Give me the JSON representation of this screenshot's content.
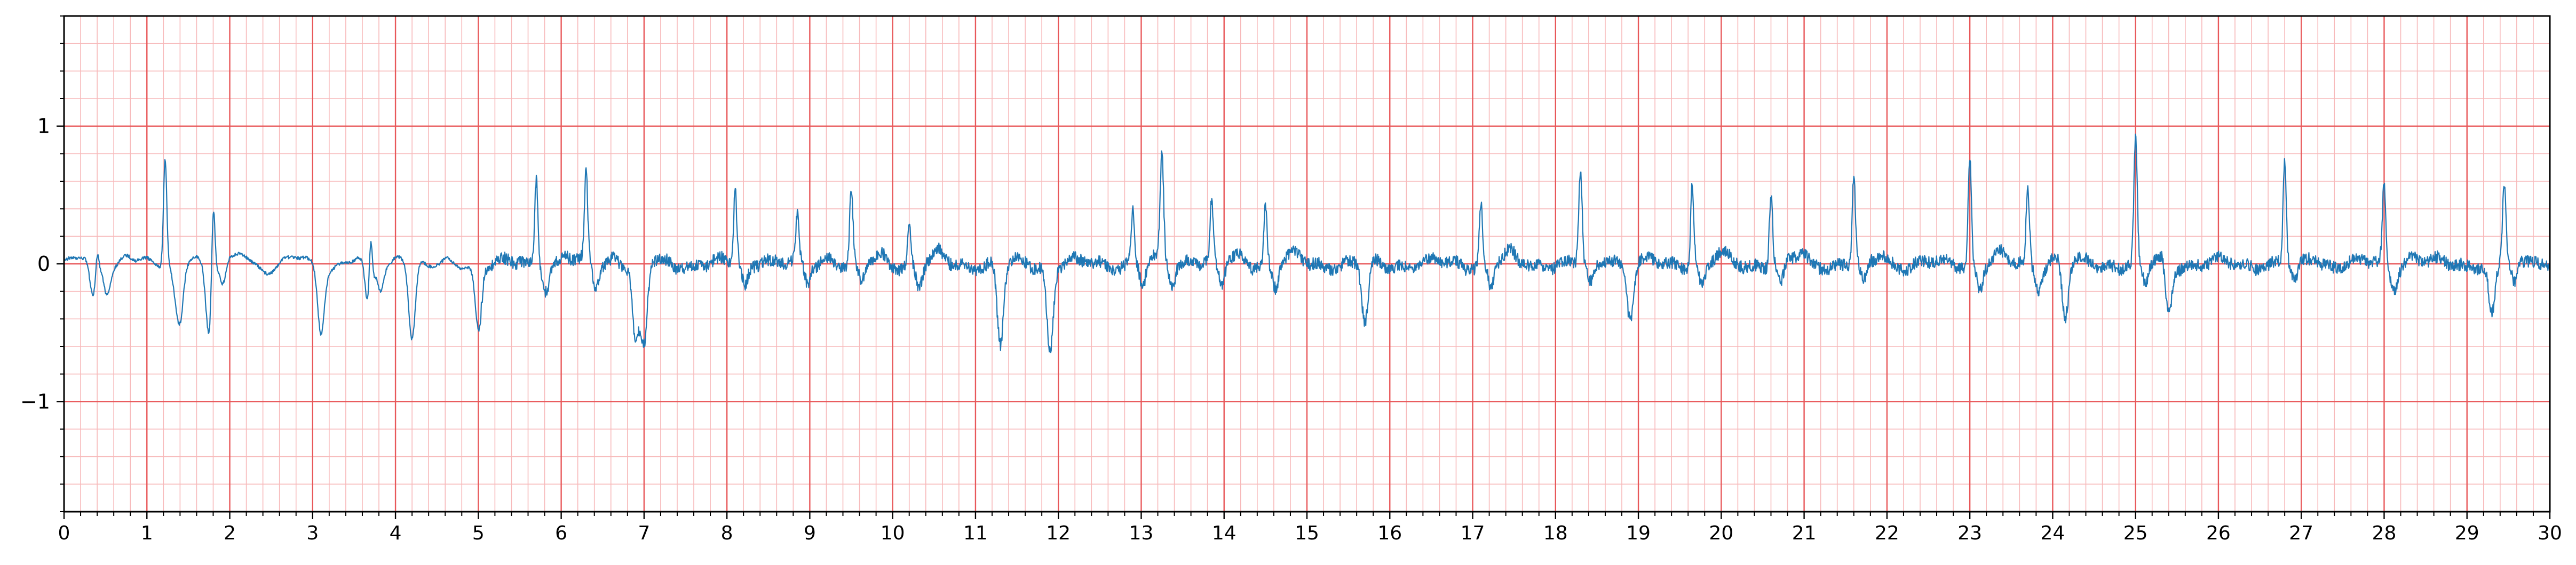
{
  "chart_data": {
    "type": "line",
    "title": "",
    "xlabel": "",
    "ylabel": "",
    "xlim": [
      0,
      30
    ],
    "ylim": [
      -1.8,
      1.8
    ],
    "x_ticks": [
      "0",
      "1",
      "2",
      "3",
      "4",
      "5",
      "6",
      "7",
      "8",
      "9",
      "10",
      "11",
      "12",
      "13",
      "14",
      "15",
      "16",
      "17",
      "18",
      "19",
      "20",
      "21",
      "22",
      "23",
      "24",
      "25",
      "26",
      "27",
      "28",
      "29",
      "30"
    ],
    "y_ticks": [
      {
        "value": 1,
        "label": "1"
      },
      {
        "value": 0,
        "label": "0"
      },
      {
        "value": -1,
        "label": "−1"
      }
    ],
    "grid": {
      "major": {
        "x_step": 1,
        "y_step": 1,
        "color": "#e8585a"
      },
      "minor": {
        "x_step": 0.2,
        "y_step": 0.2,
        "color": "#f7b9ba"
      }
    },
    "series": [
      {
        "color": "#1f77b4",
        "peaks": [
          {
            "x": 0.4,
            "y": 0.2
          },
          {
            "x": 1.22,
            "y": 0.8
          },
          {
            "x": 1.8,
            "y": 0.64
          },
          {
            "x": 3.7,
            "y": 0.52
          },
          {
            "x": 5.7,
            "y": 0.65
          },
          {
            "x": 6.3,
            "y": 0.65
          },
          {
            "x": 8.1,
            "y": 0.55
          },
          {
            "x": 8.85,
            "y": 0.35
          },
          {
            "x": 9.5,
            "y": 0.55
          },
          {
            "x": 10.2,
            "y": 0.3
          },
          {
            "x": 12.9,
            "y": 0.4
          },
          {
            "x": 13.25,
            "y": 0.73
          },
          {
            "x": 13.85,
            "y": 0.45
          },
          {
            "x": 14.5,
            "y": 0.45
          },
          {
            "x": 17.1,
            "y": 0.45
          },
          {
            "x": 18.3,
            "y": 0.7
          },
          {
            "x": 19.65,
            "y": 0.62
          },
          {
            "x": 20.6,
            "y": 0.55
          },
          {
            "x": 21.6,
            "y": 0.65
          },
          {
            "x": 23.0,
            "y": 0.8
          },
          {
            "x": 23.7,
            "y": 0.55
          },
          {
            "x": 25.0,
            "y": 0.92
          },
          {
            "x": 26.8,
            "y": 0.75
          },
          {
            "x": 28.0,
            "y": 0.6
          },
          {
            "x": 29.45,
            "y": 0.6
          }
        ],
        "troughs": [
          {
            "x": 0.35,
            "y": -0.27
          },
          {
            "x": 1.4,
            "y": -0.4
          },
          {
            "x": 1.75,
            "y": -0.5
          },
          {
            "x": 3.1,
            "y": -0.45
          },
          {
            "x": 3.68,
            "y": -0.42
          },
          {
            "x": 4.2,
            "y": -0.55
          },
          {
            "x": 5.0,
            "y": -0.45
          },
          {
            "x": 6.9,
            "y": -0.57
          },
          {
            "x": 7.0,
            "y": -0.58
          },
          {
            "x": 11.3,
            "y": -0.6
          },
          {
            "x": 11.9,
            "y": -0.62
          },
          {
            "x": 15.7,
            "y": -0.45
          },
          {
            "x": 18.9,
            "y": -0.38
          },
          {
            "x": 24.15,
            "y": -0.4
          },
          {
            "x": 25.4,
            "y": -0.42
          },
          {
            "x": 29.3,
            "y": -0.38
          }
        ]
      }
    ]
  }
}
